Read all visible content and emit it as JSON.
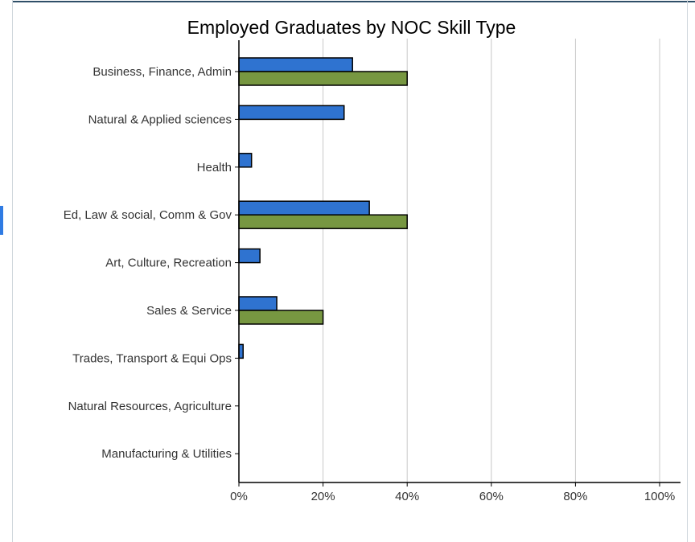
{
  "chart_data": {
    "type": "bar",
    "orientation": "horizontal",
    "title": "Employed Graduates by NOC Skill Type",
    "categories": [
      "Business, Finance, Admin",
      "Natural & Applied sciences",
      "Health",
      "Ed, Law & social, Comm & Gov",
      "Art, Culture, Recreation",
      "Sales & Service",
      "Trades, Transport & Equi Ops",
      "Natural Resources, Agriculture",
      "Manufacturing & Utilities"
    ],
    "series": [
      {
        "color": "#2f73d0",
        "values": [
          27,
          25,
          3,
          31,
          5,
          9,
          1,
          0,
          0
        ]
      },
      {
        "color": "#779741",
        "values": [
          40,
          0,
          0,
          40,
          0,
          20,
          0,
          0,
          0
        ]
      }
    ],
    "xlim": [
      0,
      100
    ],
    "xticks": [
      0,
      20,
      40,
      60,
      80,
      100
    ],
    "xtick_labels": [
      "0%",
      "20%",
      "40%",
      "60%",
      "80%",
      "100%"
    ],
    "grid": "vertical",
    "legend": "none"
  }
}
